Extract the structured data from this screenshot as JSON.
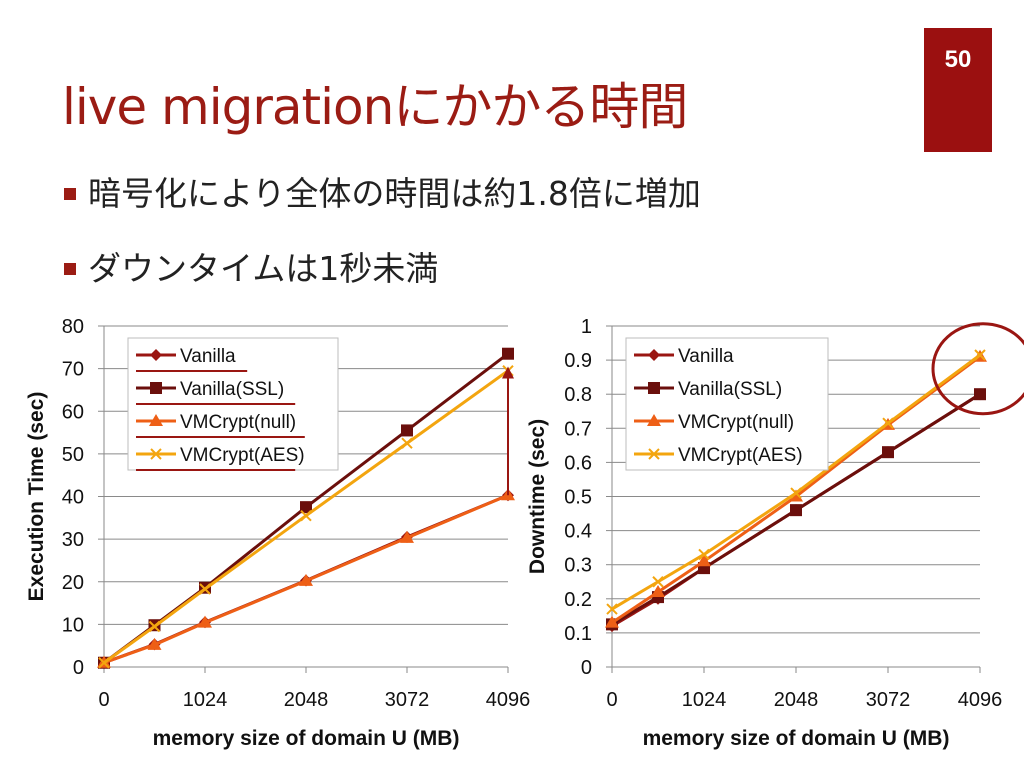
{
  "slide": {
    "title": "live migrationにかかる時間",
    "page_number": "50",
    "bullets": [
      "暗号化により全体の時間は約1.8倍に増加",
      "ダウンタイムは1秒未満"
    ],
    "accent_color": "#9b1c14"
  },
  "chart_data": [
    {
      "type": "line",
      "title": "",
      "xlabel": "memory size of domain U (MB)",
      "ylabel": "Execution Time (sec)",
      "xlim": [
        0,
        4096
      ],
      "ylim": [
        0,
        80
      ],
      "x_ticks": [
        0,
        1024,
        2048,
        3072,
        4096
      ],
      "y_ticks": [
        0,
        10,
        20,
        30,
        40,
        50,
        60,
        70,
        80
      ],
      "y_tick_labels": [
        "0",
        "10",
        "20",
        "30",
        "40",
        "50",
        "60",
        "70",
        "80"
      ],
      "x": [
        0,
        512,
        1024,
        2048,
        3072,
        4096
      ],
      "grid": "horizontal",
      "legend": "top-left",
      "series": [
        {
          "name": "Vanilla",
          "marker": "diamond",
          "color": "#9a1612",
          "values": [
            1,
            5.3,
            10.5,
            20.3,
            30.5,
            40.3
          ]
        },
        {
          "name": "Vanilla(SSL)",
          "marker": "square",
          "color": "#6b0f0c",
          "values": [
            1,
            9.8,
            18.6,
            37.5,
            55.5,
            73.5
          ]
        },
        {
          "name": "VMCrypt(null)",
          "marker": "triangle",
          "color": "#ee5f16",
          "values": [
            1,
            5.2,
            10.4,
            20.2,
            30.3,
            40.3
          ]
        },
        {
          "name": "VMCrypt(AES)",
          "marker": "x",
          "color": "#f3a50f",
          "values": [
            1,
            9.5,
            18.3,
            35.5,
            52.5,
            69.5
          ]
        }
      ],
      "annotations": [
        {
          "type": "arrow",
          "x": 4096,
          "from": 40.3,
          "to": 70.5,
          "color": "#9a1612"
        }
      ]
    },
    {
      "type": "line",
      "title": "",
      "xlabel": "memory size of domain U (MB)",
      "ylabel": "Downtime (sec)",
      "xlim": [
        0,
        4096
      ],
      "ylim": [
        0,
        1
      ],
      "x_ticks": [
        0,
        1024,
        2048,
        3072,
        4096
      ],
      "y_ticks": [
        0,
        0.1,
        0.2,
        0.3,
        0.4,
        0.5,
        0.6,
        0.7,
        0.8,
        0.9,
        1
      ],
      "y_tick_labels": [
        "0",
        "0.1",
        "0.2",
        "0.3",
        "0.4",
        "0.5",
        "0.6",
        "0.7",
        "0.8",
        "0.9",
        "1"
      ],
      "x": [
        0,
        512,
        1024,
        2048,
        3072,
        4096
      ],
      "grid": "horizontal",
      "legend": "top-left",
      "series": [
        {
          "name": "Vanilla",
          "marker": "diamond",
          "color": "#9a1612",
          "values": [
            0.12,
            0.2,
            0.29,
            0.46,
            0.63,
            0.8
          ]
        },
        {
          "name": "Vanilla(SSL)",
          "marker": "square",
          "color": "#6b0f0c",
          "values": [
            0.125,
            0.205,
            0.29,
            0.46,
            0.63,
            0.8
          ]
        },
        {
          "name": "VMCrypt(null)",
          "marker": "triangle",
          "color": "#ee5f16",
          "values": [
            0.13,
            0.22,
            0.31,
            0.5,
            0.71,
            0.91
          ]
        },
        {
          "name": "VMCrypt(AES)",
          "marker": "x",
          "color": "#f3a50f",
          "values": [
            0.17,
            0.25,
            0.33,
            0.51,
            0.715,
            0.915
          ]
        }
      ],
      "annotations": [
        {
          "type": "ellipse",
          "x": 4096,
          "y": 0.91,
          "color": "#9a1612"
        }
      ]
    }
  ]
}
